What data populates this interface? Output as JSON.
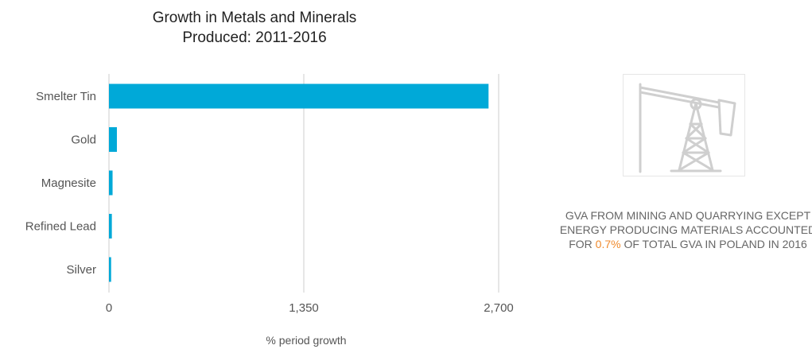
{
  "chart_data": {
    "type": "bar",
    "orientation": "horizontal",
    "title": "Growth in Metals and Minerals Produced: 2011-2016",
    "title_lines": [
      "Growth in Metals and Minerals",
      "Produced: 2011-2016"
    ],
    "xlabel": "% period growth",
    "ylabel": "",
    "categories": [
      "Smelter Tin",
      "Gold",
      "Magnesite",
      "Refined Lead",
      "Silver"
    ],
    "values": [
      2630,
      55,
      25,
      20,
      15
    ],
    "xlim": [
      0,
      2700
    ],
    "xticks": [
      0,
      1350,
      2700
    ],
    "xtick_labels": [
      "0",
      "1,350",
      "2,700"
    ],
    "grid": "vertical",
    "bar_color": "#00a9d8",
    "grid_color": "#cccccc"
  },
  "side_panel": {
    "icon": "oil-pumpjack-icon",
    "text_before": "GVA FROM MINING AND QUARRYING EXCEPT ENERGY PRODUCING MATERIALS ACCOUNTED FOR",
    "highlight": "0.7%",
    "text_after": "OF TOTAL GVA IN POLAND IN 2016",
    "highlight_color": "#f08a2c"
  }
}
